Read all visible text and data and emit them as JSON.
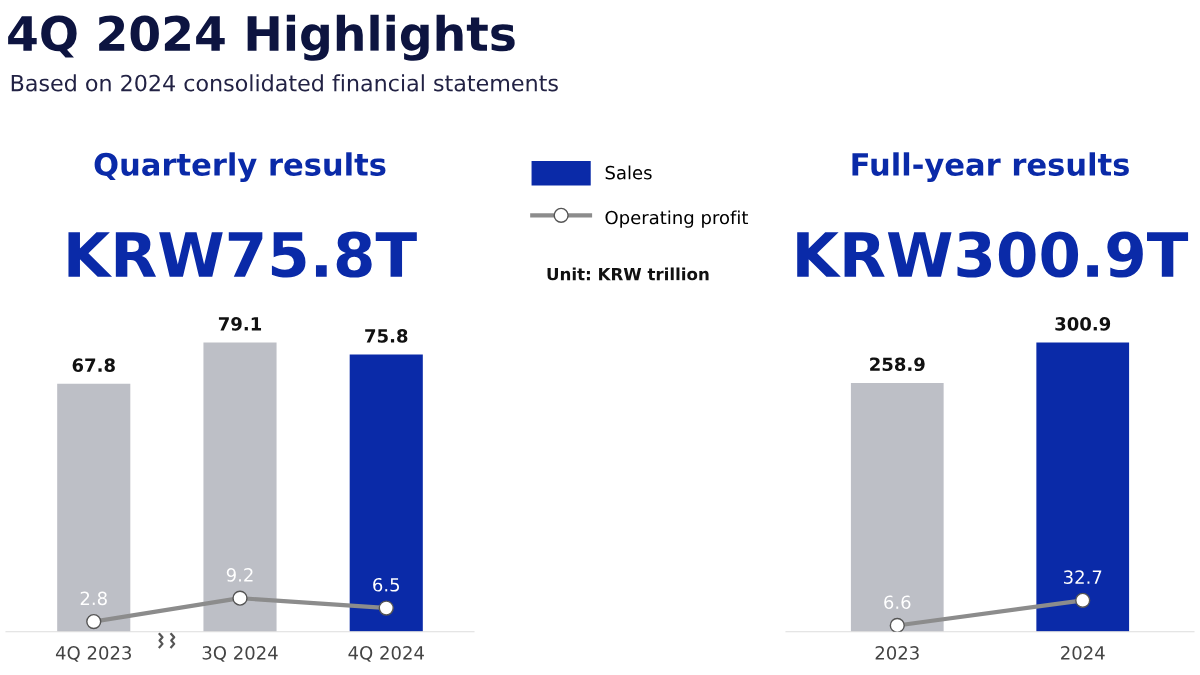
{
  "chart_data": [
    {
      "type": "bar",
      "title": "Quarterly results",
      "subtitle": "KRW75.8T",
      "categories": [
        "4Q 2023",
        "3Q 2024",
        "4Q 2024"
      ],
      "tick_labels": "x",
      "grid": false,
      "legend": "right",
      "data_labels": true,
      "marker": "circle",
      "annotations": [
        "4Q 2024 Highlights",
        "Based on 2024 consolidated financial statements",
        "Unit: KRW trillion"
      ],
      "series": [
        {
          "name": "Sales",
          "color": "#0a2aa8",
          "colors": [
            "#bdbfc6",
            "#bdbfc6",
            "#0a2aa8"
          ],
          "values": [
            67.8,
            79.1,
            75.8
          ]
        },
        {
          "name": "Operating profit",
          "type": "line",
          "color": "#8c8c8c",
          "values": [
            2.8,
            9.2,
            6.5
          ]
        }
      ]
    },
    {
      "type": "bar",
      "title": "Full-year results",
      "subtitle": "KRW300.9T",
      "categories": [
        "2023",
        "2024"
      ],
      "tick_labels": "x",
      "grid": false,
      "data_labels": true,
      "marker": "circle",
      "series": [
        {
          "color": "#0a2aa8",
          "colors": [
            "#bdbfc6",
            "#0a2aa8"
          ],
          "values": [
            258.9,
            300.9
          ]
        },
        {
          "type": "line",
          "color": "#8c8c8c",
          "values": [
            6.6,
            32.7
          ]
        }
      ]
    }
  ]
}
